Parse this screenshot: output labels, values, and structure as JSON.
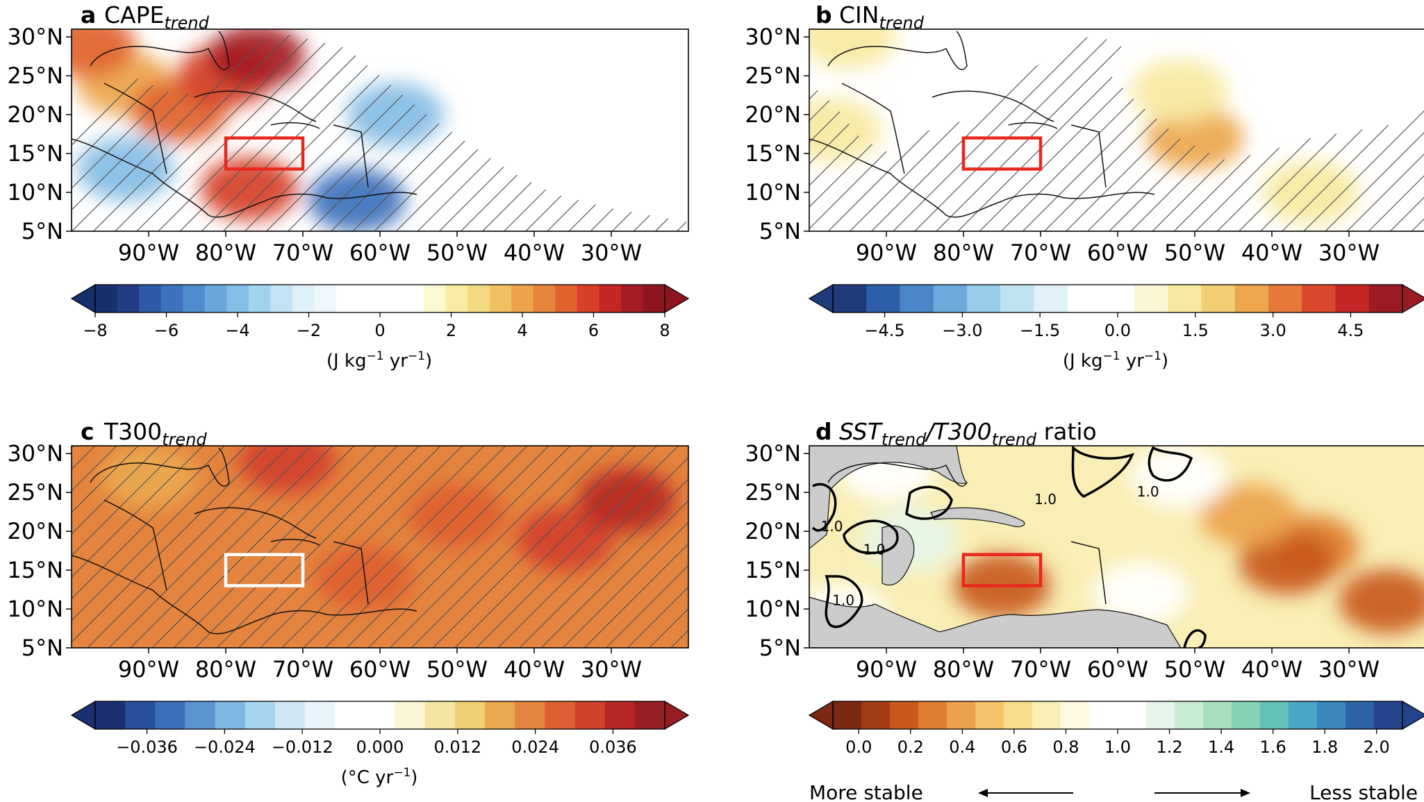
{
  "chart_data": [
    {
      "type": "heatmap",
      "panel_letter": "a",
      "title_main": "CAPE",
      "title_sub": "trend",
      "x_ticks": [
        "90°W",
        "80°W",
        "70°W",
        "60°W",
        "50°W",
        "40°W",
        "30°W"
      ],
      "x_tick_values": [
        -90,
        -80,
        -70,
        -60,
        -50,
        -40,
        -30
      ],
      "y_ticks": [
        "30°N",
        "25°N",
        "20°N",
        "15°N",
        "10°N",
        "5°N"
      ],
      "y_tick_values": [
        30,
        25,
        20,
        15,
        10,
        5
      ],
      "xlim": [
        -100,
        -20
      ],
      "ylim": [
        5,
        31
      ],
      "hatching": "significant regions",
      "box": {
        "lon": [
          -80,
          -70
        ],
        "lat": [
          13,
          17
        ],
        "color": "#e8281e"
      },
      "colorbar": {
        "ticks": [
          "−8",
          "−6",
          "−4",
          "−2",
          "0",
          "2",
          "4",
          "6",
          "8"
        ],
        "tick_values": [
          -8,
          -6,
          -4,
          -2,
          0,
          2,
          4,
          6,
          8
        ],
        "range": [
          -8,
          8
        ],
        "unit_pre": "(J kg",
        "unit_sup1": "−1",
        "unit_mid": " yr",
        "unit_sup2": "−1",
        "unit_post": ")",
        "colors": [
          "#15306c",
          "#233d85",
          "#2d59a6",
          "#3d72bc",
          "#4f8ccd",
          "#6aa6da",
          "#84bde5",
          "#a1d2ee",
          "#c2e3f4",
          "#dff0f9",
          "#eef7fc",
          "#ffffff",
          "#ffffff",
          "#ffffff",
          "#ffffff",
          "#fbf8d2",
          "#f7eca2",
          "#f5da84",
          "#f1c060",
          "#eda44b",
          "#e7833b",
          "#e0622d",
          "#d64027",
          "#c42625",
          "#a51c24",
          "#8e1520"
        ]
      },
      "field_description": "Positive trend over Gulf of Mexico and Florida; negative trend over western Atlantic and Central America",
      "blobs": [
        {
          "lon": -93,
          "lat": 24,
          "value": 4
        },
        {
          "lon": -86,
          "lat": 20.5,
          "value": 5
        },
        {
          "lon": -80,
          "lat": 25,
          "value": 6
        },
        {
          "lon": -76,
          "lat": 27.5,
          "value": 7
        },
        {
          "lon": -98,
          "lat": 29,
          "value": 5
        },
        {
          "lon": -77,
          "lat": 10.5,
          "value": 6
        },
        {
          "lon": -58,
          "lat": 20,
          "value": -4
        },
        {
          "lon": -63,
          "lat": 9,
          "value": -6
        },
        {
          "lon": -93,
          "lat": 13,
          "value": -4
        }
      ]
    },
    {
      "type": "heatmap",
      "panel_letter": "b",
      "title_main": "CIN",
      "title_sub": "trend",
      "x_ticks": [
        "90°W",
        "80°W",
        "70°W",
        "60°W",
        "50°W",
        "40°W",
        "30°W"
      ],
      "x_tick_values": [
        -90,
        -80,
        -70,
        -60,
        -50,
        -40,
        -30
      ],
      "y_ticks": [
        "30°N",
        "25°N",
        "20°N",
        "15°N",
        "10°N",
        "5°N"
      ],
      "y_tick_values": [
        30,
        25,
        20,
        15,
        10,
        5
      ],
      "xlim": [
        -100,
        -20
      ],
      "ylim": [
        5,
        31
      ],
      "hatching": "significant regions",
      "box": {
        "lon": [
          -80,
          -70
        ],
        "lat": [
          13,
          17
        ],
        "color": "#e8281e"
      },
      "colorbar": {
        "ticks": [
          "−4.5",
          "−3.0",
          "−1.5",
          "0.0",
          "1.5",
          "3.0",
          "4.5"
        ],
        "tick_values": [
          -4.5,
          -3.0,
          -1.5,
          0.0,
          1.5,
          3.0,
          4.5
        ],
        "range": [
          -5.5,
          5.5
        ],
        "unit_pre": "(J kg",
        "unit_sup1": "−1",
        "unit_mid": " yr",
        "unit_sup2": "−1",
        "unit_post": ")",
        "colors": [
          "#1f3b7a",
          "#2d5fa8",
          "#4a86c8",
          "#6ea9dc",
          "#97cbe9",
          "#c0e3f2",
          "#e0f1f8",
          "#ffffff",
          "#ffffff",
          "#fbf7d5",
          "#f7e9a0",
          "#f2cd72",
          "#eda64c",
          "#e6793a",
          "#d9482b",
          "#c22726",
          "#9b1b22"
        ]
      },
      "field_description": "Weak positive trend across basin",
      "blobs": [
        {
          "lon": -50,
          "lat": 17,
          "value": 2.5
        },
        {
          "lon": -52,
          "lat": 23,
          "value": 1.5
        },
        {
          "lon": -95,
          "lat": 30,
          "value": 1.5
        },
        {
          "lon": -35,
          "lat": 10,
          "value": 1.5
        },
        {
          "lon": -97,
          "lat": 18,
          "value": 1.0
        }
      ]
    },
    {
      "type": "heatmap",
      "panel_letter": "c",
      "title_main": "T300",
      "title_sub": "trend",
      "x_ticks": [
        "90°W",
        "80°W",
        "70°W",
        "60°W",
        "50°W",
        "40°W",
        "30°W"
      ],
      "x_tick_values": [
        -90,
        -80,
        -70,
        -60,
        -50,
        -40,
        -30
      ],
      "y_ticks": [
        "30°N",
        "25°N",
        "20°N",
        "15°N",
        "10°N",
        "5°N"
      ],
      "y_tick_values": [
        30,
        25,
        20,
        15,
        10,
        5
      ],
      "xlim": [
        -100,
        -20
      ],
      "ylim": [
        5,
        31
      ],
      "hatching": "entire domain",
      "box": {
        "lon": [
          -80,
          -70
        ],
        "lat": [
          13,
          17
        ],
        "color": "#ffffff"
      },
      "colorbar": {
        "ticks": [
          "−0.036",
          "−0.024",
          "−0.012",
          "0.000",
          "0.012",
          "0.024",
          "0.036"
        ],
        "tick_values": [
          -0.036,
          -0.024,
          -0.012,
          0.0,
          0.012,
          0.024,
          0.036
        ],
        "range": [
          -0.044,
          0.044
        ],
        "unit_pre": "(°C yr",
        "unit_sup1": "−1",
        "unit_mid": "",
        "unit_sup2": "",
        "unit_post": ")",
        "colors": [
          "#1b2f72",
          "#2a4f9b",
          "#3c70ba",
          "#5a95d2",
          "#80b8e4",
          "#a7d4ef",
          "#cfe7f5",
          "#eaf4fb",
          "#ffffff",
          "#ffffff",
          "#f8f6d4",
          "#f3e6a2",
          "#f0cf74",
          "#eaa94e",
          "#e5843e",
          "#de6032",
          "#d3412b",
          "#b72625",
          "#961d21"
        ]
      },
      "field_description": "Warming everywhere, strongest over eastern Atlantic",
      "background_value": 0.022,
      "blobs": [
        {
          "lon": -36,
          "lat": 19,
          "value": 0.034
        },
        {
          "lon": -28,
          "lat": 24,
          "value": 0.035
        },
        {
          "lon": -50,
          "lat": 22,
          "value": 0.028
        },
        {
          "lon": -72,
          "lat": 29,
          "value": 0.033
        },
        {
          "lon": -90,
          "lat": 27,
          "value": 0.018
        },
        {
          "lon": -62,
          "lat": 14,
          "value": 0.028
        }
      ]
    },
    {
      "type": "heatmap",
      "panel_letter": "d",
      "title_main_1": "SST",
      "title_sub_1": "trend",
      "title_slash": "/",
      "title_main_2": "T300",
      "title_sub_2": "trend",
      "title_tail": " ratio",
      "x_ticks": [
        "90°W",
        "80°W",
        "70°W",
        "60°W",
        "50°W",
        "40°W",
        "30°W"
      ],
      "x_tick_values": [
        -90,
        -80,
        -70,
        -60,
        -50,
        -40,
        -30
      ],
      "y_ticks": [
        "30°N",
        "25°N",
        "20°N",
        "15°N",
        "10°N",
        "5°N"
      ],
      "y_tick_values": [
        30,
        25,
        20,
        15,
        10,
        5
      ],
      "xlim": [
        -100,
        -20
      ],
      "ylim": [
        5,
        31
      ],
      "land_color": "#cccccc",
      "box": {
        "lon": [
          -80,
          -70
        ],
        "lat": [
          13,
          17
        ],
        "color": "#e8281e"
      },
      "contour_value": "1.0",
      "contour_labels": [
        "1.0",
        "1.0",
        "1.0",
        "1.0",
        "1.0"
      ],
      "colorbar": {
        "ticks": [
          "0.0",
          "0.2",
          "0.4",
          "0.6",
          "0.8",
          "1.0",
          "1.2",
          "1.4",
          "1.6",
          "1.8",
          "2.0"
        ],
        "tick_values": [
          0.0,
          0.2,
          0.4,
          0.6,
          0.8,
          1.0,
          1.2,
          1.4,
          1.6,
          1.8,
          2.0
        ],
        "range": [
          -0.1,
          2.1
        ],
        "colors": [
          "#7a2a12",
          "#a13c14",
          "#c9581d",
          "#e07d2e",
          "#eca24a",
          "#f3c26a",
          "#f7dc8c",
          "#f9eeb5",
          "#fdf8df",
          "#ffffff",
          "#ffffff",
          "#e6f6ea",
          "#c8ecd3",
          "#a6e0bd",
          "#84d2b4",
          "#63c0b6",
          "#4aa6c6",
          "#3b86bd",
          "#2e64a6",
          "#23448c"
        ]
      },
      "stability_left": "More stable",
      "stability_right": "Less stable",
      "field_description": "Ratio mostly below 1 over the Atlantic (more stable), near 1 over Gulf",
      "background_value": 0.7,
      "blobs": [
        {
          "lon": -35,
          "lat": 18,
          "value": 0.3
        },
        {
          "lon": -38,
          "lat": 16,
          "value": 0.15
        },
        {
          "lon": -25,
          "lat": 11,
          "value": 0.2
        },
        {
          "lon": -43,
          "lat": 22,
          "value": 0.4
        },
        {
          "lon": -75,
          "lat": 13,
          "value": 0.15
        },
        {
          "lon": -57,
          "lat": 12,
          "value": 0.95
        },
        {
          "lon": -90,
          "lat": 28,
          "value": 1.0
        },
        {
          "lon": -96,
          "lat": 9,
          "value": 1.1
        },
        {
          "lon": -87,
          "lat": 19,
          "value": 1.15
        },
        {
          "lon": -52,
          "lat": 27,
          "value": 0.9
        }
      ]
    }
  ]
}
